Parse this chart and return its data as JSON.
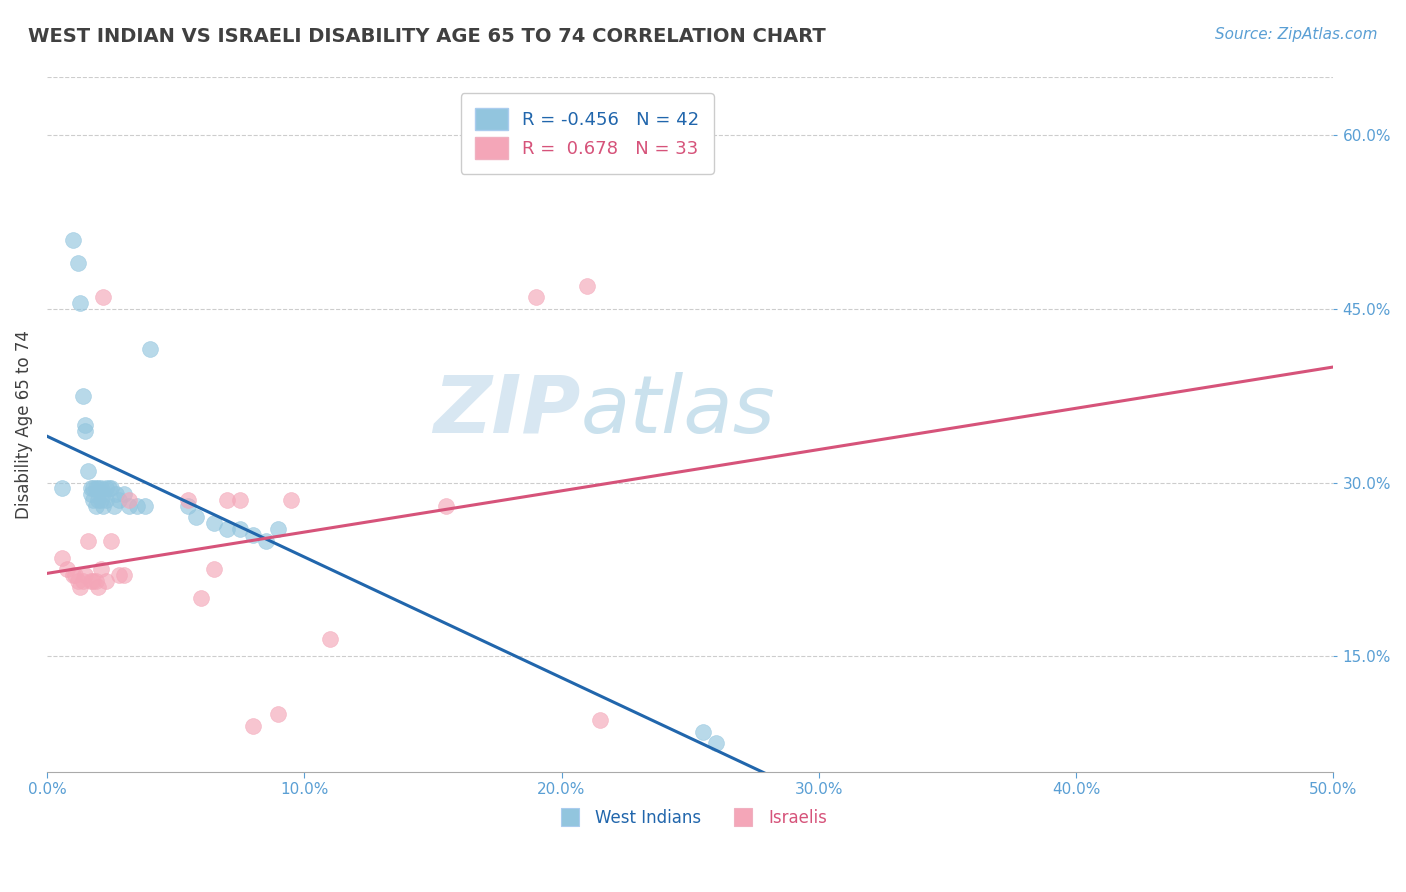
{
  "title": "WEST INDIAN VS ISRAELI DISABILITY AGE 65 TO 74 CORRELATION CHART",
  "source_text": "Source: ZipAtlas.com",
  "ylabel": "Disability Age 65 to 74",
  "xlim": [
    0.0,
    0.5
  ],
  "ylim": [
    0.05,
    0.65
  ],
  "x_ticks": [
    0.0,
    0.1,
    0.2,
    0.3,
    0.4,
    0.5
  ],
  "x_tick_labels": [
    "0.0%",
    "10.0%",
    "20.0%",
    "30.0%",
    "40.0%",
    "50.0%"
  ],
  "y_ticks": [
    0.15,
    0.3,
    0.45,
    0.6
  ],
  "y_tick_labels": [
    "15.0%",
    "30.0%",
    "45.0%",
    "60.0%"
  ],
  "blue_R": -0.456,
  "blue_N": 42,
  "pink_R": 0.678,
  "pink_N": 33,
  "blue_color": "#92c5de",
  "pink_color": "#f4a6b8",
  "blue_line_color": "#2166ac",
  "pink_line_color": "#d6537a",
  "background_color": "#ffffff",
  "grid_color": "#c8c8c8",
  "title_color": "#404040",
  "watermark_zip": "ZIP",
  "watermark_atlas": "atlas",
  "legend_label_blue": "West Indians",
  "legend_label_pink": "Israelis",
  "blue_x": [
    0.006,
    0.01,
    0.012,
    0.013,
    0.014,
    0.015,
    0.015,
    0.016,
    0.017,
    0.017,
    0.018,
    0.018,
    0.019,
    0.019,
    0.02,
    0.02,
    0.021,
    0.021,
    0.022,
    0.022,
    0.023,
    0.023,
    0.024,
    0.025,
    0.026,
    0.027,
    0.028,
    0.03,
    0.032,
    0.035,
    0.038,
    0.04,
    0.055,
    0.058,
    0.065,
    0.07,
    0.075,
    0.08,
    0.085,
    0.09,
    0.255,
    0.26
  ],
  "blue_y": [
    0.295,
    0.51,
    0.49,
    0.455,
    0.375,
    0.35,
    0.345,
    0.31,
    0.295,
    0.29,
    0.295,
    0.285,
    0.295,
    0.28,
    0.295,
    0.285,
    0.285,
    0.295,
    0.29,
    0.28,
    0.295,
    0.285,
    0.295,
    0.295,
    0.28,
    0.29,
    0.285,
    0.29,
    0.28,
    0.28,
    0.28,
    0.415,
    0.28,
    0.27,
    0.265,
    0.26,
    0.26,
    0.255,
    0.25,
    0.26,
    0.085,
    0.075
  ],
  "pink_x": [
    0.006,
    0.008,
    0.01,
    0.011,
    0.012,
    0.013,
    0.014,
    0.015,
    0.016,
    0.017,
    0.018,
    0.019,
    0.02,
    0.021,
    0.022,
    0.023,
    0.025,
    0.028,
    0.03,
    0.032,
    0.055,
    0.06,
    0.065,
    0.07,
    0.075,
    0.08,
    0.09,
    0.095,
    0.11,
    0.155,
    0.19,
    0.21,
    0.215
  ],
  "pink_y": [
    0.235,
    0.225,
    0.22,
    0.22,
    0.215,
    0.21,
    0.215,
    0.22,
    0.25,
    0.215,
    0.215,
    0.215,
    0.21,
    0.225,
    0.46,
    0.215,
    0.25,
    0.22,
    0.22,
    0.285,
    0.285,
    0.2,
    0.225,
    0.285,
    0.285,
    0.09,
    0.1,
    0.285,
    0.165,
    0.28,
    0.46,
    0.47,
    0.095
  ]
}
